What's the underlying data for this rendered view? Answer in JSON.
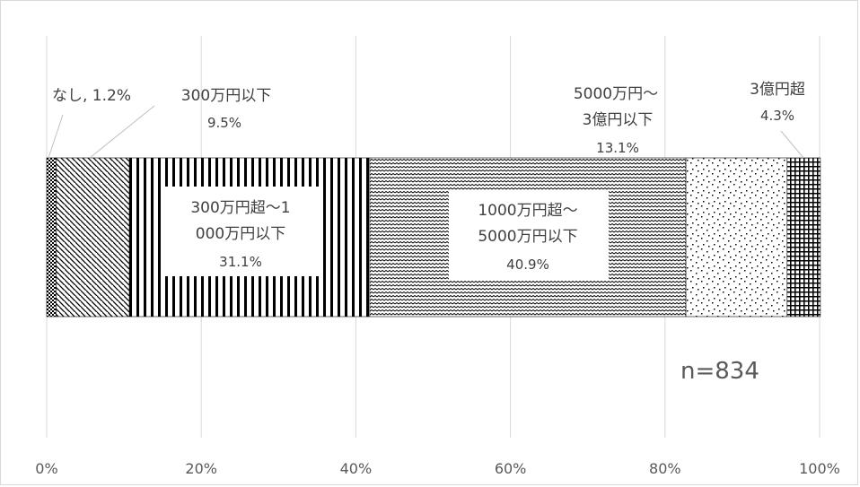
{
  "chart_data": {
    "type": "bar",
    "orientation": "horizontal",
    "stacked": true,
    "title": "",
    "xlabel": "",
    "ylabel": "",
    "xlim": [
      0,
      100
    ],
    "x_ticks": [
      "0%",
      "20%",
      "40%",
      "60%",
      "80%",
      "100%"
    ],
    "grid": true,
    "legend": "none",
    "note": "n=834",
    "series": [
      {
        "name": "なし",
        "value": 1.2,
        "label_lines": [
          "なし, 1.2%"
        ],
        "pattern": "dense-dots"
      },
      {
        "name": "300万円以下",
        "value": 9.5,
        "label_lines": [
          "300万円以下",
          "9.5%"
        ],
        "pattern": "diagonal"
      },
      {
        "name": "300万円超～1000万円以下",
        "value": 31.1,
        "label_lines": [
          "300万円超～1",
          "000万円以下",
          "31.1%"
        ],
        "pattern": "vertical"
      },
      {
        "name": "1000万円超～5000万円以下",
        "value": 40.9,
        "label_lines": [
          "1000万円超～",
          "5000万円以下",
          "40.9%"
        ],
        "pattern": "wave"
      },
      {
        "name": "5000万円～3億円以下",
        "value": 13.1,
        "label_lines": [
          "5000万円～",
          "3億円以下",
          "13.1%"
        ],
        "pattern": "sparse-dots"
      },
      {
        "name": "3億円超",
        "value": 4.3,
        "label_lines": [
          "3億円超",
          "4.3%"
        ],
        "pattern": "grid"
      }
    ]
  }
}
